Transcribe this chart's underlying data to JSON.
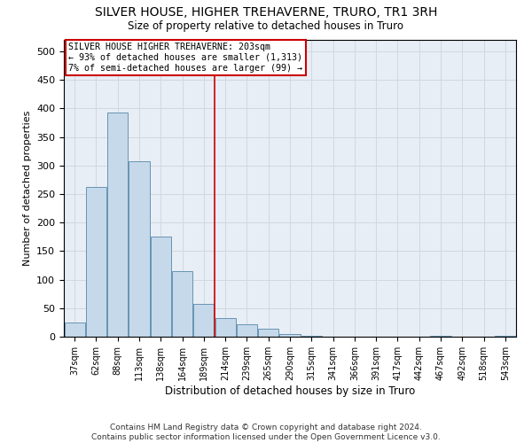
{
  "title": "SILVER HOUSE, HIGHER TREHAVERNE, TRURO, TR1 3RH",
  "subtitle": "Size of property relative to detached houses in Truro",
  "xlabel": "Distribution of detached houses by size in Truro",
  "ylabel": "Number of detached properties",
  "footer_line1": "Contains HM Land Registry data © Crown copyright and database right 2024.",
  "footer_line2": "Contains public sector information licensed under the Open Government Licence v3.0.",
  "bin_labels": [
    "37sqm",
    "62sqm",
    "88sqm",
    "113sqm",
    "138sqm",
    "164sqm",
    "189sqm",
    "214sqm",
    "239sqm",
    "265sqm",
    "290sqm",
    "315sqm",
    "341sqm",
    "366sqm",
    "391sqm",
    "417sqm",
    "442sqm",
    "467sqm",
    "492sqm",
    "518sqm",
    "543sqm"
  ],
  "bar_values": [
    25,
    263,
    393,
    308,
    175,
    115,
    58,
    33,
    22,
    14,
    5,
    1,
    0,
    0,
    0,
    0,
    0,
    1,
    0,
    0,
    1
  ],
  "bar_color": "#c6d9ea",
  "bar_edgecolor": "#5588aa",
  "grid_color": "#d0d8e0",
  "background_color": "#e8eef5",
  "annotation_box_color": "#cc0000",
  "vline_color": "#cc0000",
  "vline_x": 7.0,
  "annotation_text_line1": "SILVER HOUSE HIGHER TREHAVERNE: 203sqm",
  "annotation_text_line2": "← 93% of detached houses are smaller (1,313)",
  "annotation_text_line3": "7% of semi-detached houses are larger (99) →",
  "ylim": [
    0,
    520
  ],
  "yticks": [
    0,
    50,
    100,
    150,
    200,
    250,
    300,
    350,
    400,
    450,
    500
  ]
}
